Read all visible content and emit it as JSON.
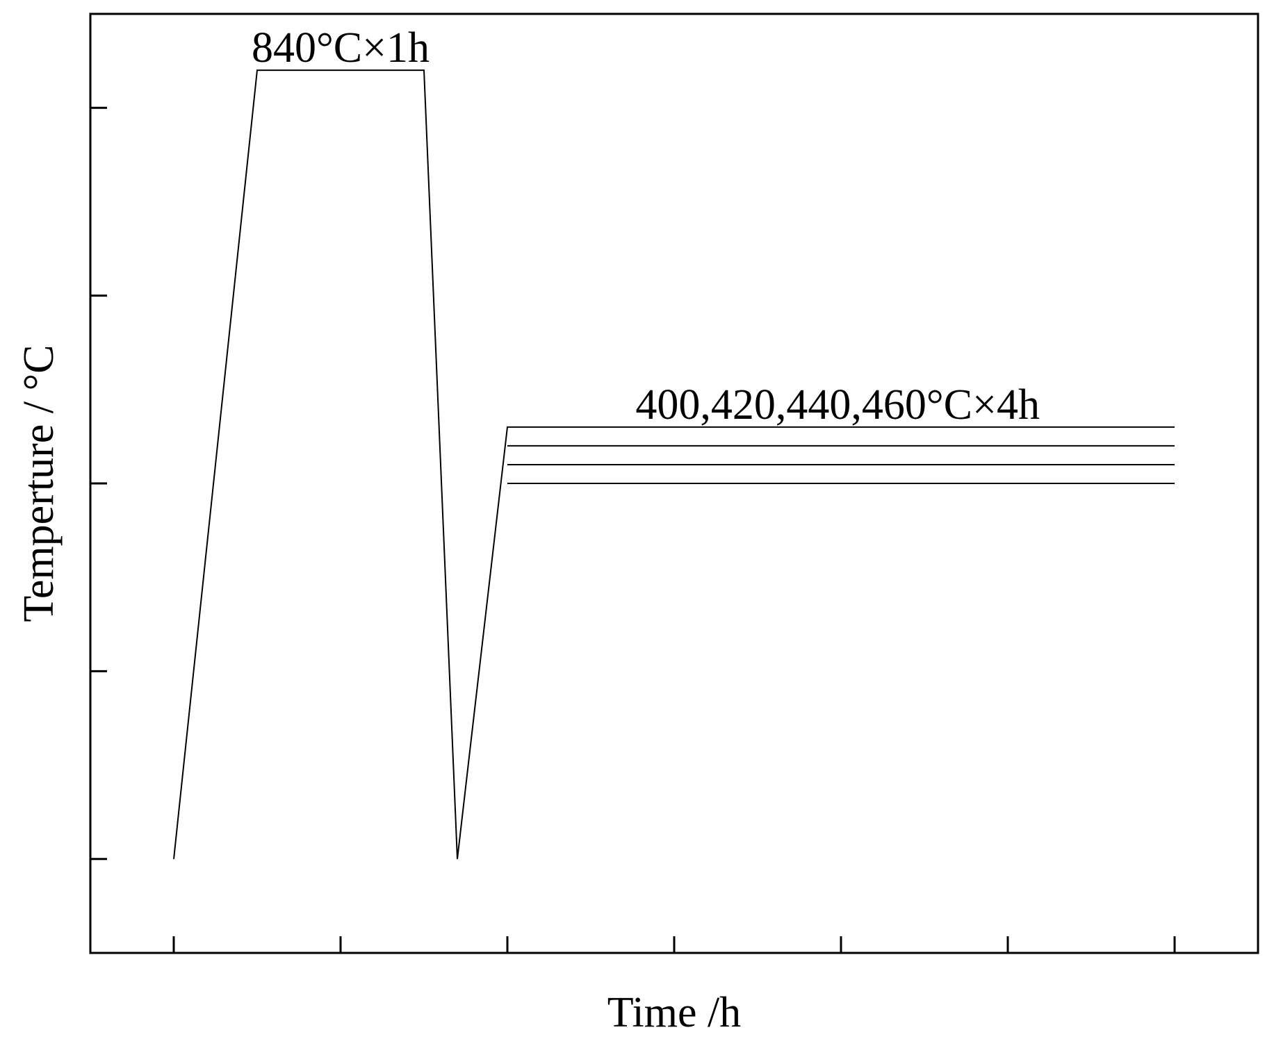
{
  "chart_data": {
    "type": "line",
    "xlabel": "Time /h",
    "ylabel": "Temperture / °C",
    "xlim": [
      -0.5,
      6.5
    ],
    "ylim": [
      -0.5,
      4.5
    ],
    "x_ticks": [
      0,
      1,
      2,
      3,
      4,
      5,
      6
    ],
    "y_ticks": [
      0,
      1,
      2,
      3,
      4
    ],
    "grid": false,
    "legend": "none",
    "series": [
      {
        "values": [
          [
            0,
            0
          ],
          [
            0.5,
            4.2
          ],
          [
            1.5,
            4.2
          ],
          [
            1.7,
            0
          ],
          [
            2.0,
            2.3
          ],
          [
            6.0,
            2.3
          ]
        ]
      },
      {
        "values": [
          [
            2.0,
            2.2
          ],
          [
            6.0,
            2.2
          ]
        ]
      },
      {
        "values": [
          [
            2.0,
            2.1
          ],
          [
            6.0,
            2.1
          ]
        ]
      },
      {
        "values": [
          [
            2.0,
            2.0
          ],
          [
            6.0,
            2.0
          ]
        ]
      }
    ],
    "annotations": [
      {
        "text": "840°C×1h",
        "x": 1.0,
        "y": 4.2
      },
      {
        "text": "400,420,440,460°C×4h",
        "x": 3.98,
        "y": 2.3
      }
    ],
    "line_color": "#000000"
  }
}
